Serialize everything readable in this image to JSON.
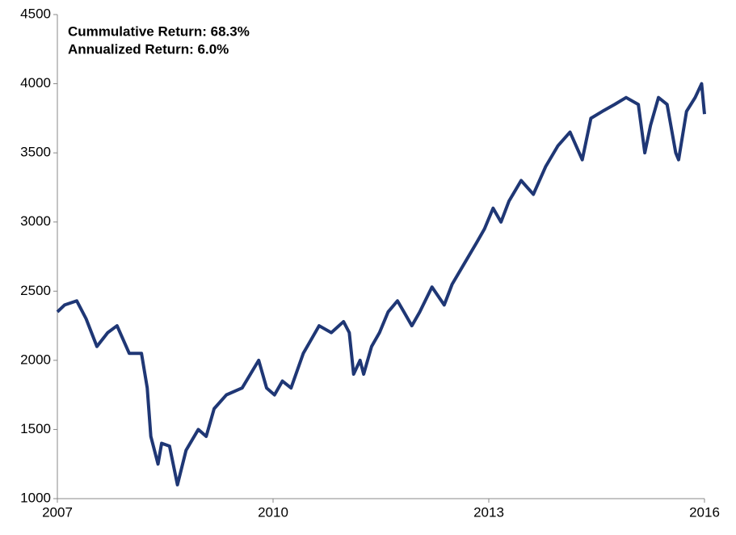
{
  "chart_data": {
    "type": "line",
    "annotations": [
      "Cummulative Return: 68.3%",
      "Annualized Return: 6.0%"
    ],
    "x": [
      2007.0,
      2007.1,
      2007.27,
      2007.4,
      2007.55,
      2007.7,
      2007.83,
      2008.0,
      2008.17,
      2008.25,
      2008.3,
      2008.4,
      2008.45,
      2008.56,
      2008.67,
      2008.79,
      2008.96,
      2009.07,
      2009.18,
      2009.35,
      2009.57,
      2009.8,
      2009.91,
      2010.02,
      2010.13,
      2010.25,
      2010.42,
      2010.64,
      2010.81,
      2010.98,
      2011.06,
      2011.12,
      2011.21,
      2011.26,
      2011.37,
      2011.48,
      2011.6,
      2011.73,
      2011.82,
      2011.93,
      2012.04,
      2012.21,
      2012.38,
      2012.49,
      2012.66,
      2012.83,
      2012.94,
      2013.06,
      2013.17,
      2013.28,
      2013.45,
      2013.62,
      2013.79,
      2013.96,
      2014.13,
      2014.3,
      2014.42,
      2014.58,
      2014.75,
      2014.91,
      2015.08,
      2015.17,
      2015.25,
      2015.36,
      2015.48,
      2015.6,
      2015.64,
      2015.75,
      2015.87,
      2015.96,
      2016.0
    ],
    "series": [
      {
        "color": "#1f3775",
        "values": [
          2350,
          2400,
          2430,
          2300,
          2100,
          2200,
          2250,
          2050,
          2050,
          1800,
          1450,
          1250,
          1400,
          1380,
          1100,
          1350,
          1500,
          1450,
          1650,
          1750,
          1800,
          2000,
          1800,
          1750,
          1850,
          1800,
          2050,
          2250,
          2200,
          2280,
          2200,
          1900,
          2000,
          1900,
          2100,
          2200,
          2350,
          2430,
          2350,
          2250,
          2350,
          2530,
          2400,
          2550,
          2700,
          2850,
          2950,
          3100,
          3000,
          3150,
          3300,
          3200,
          3400,
          3550,
          3650,
          3450,
          3750,
          3800,
          3850,
          3900,
          3850,
          3500,
          3700,
          3900,
          3850,
          3500,
          3450,
          3800,
          3900,
          4000,
          3780
        ]
      }
    ],
    "xlim": [
      2007,
      2016
    ],
    "xticks": [
      2007,
      2010,
      2013,
      2016
    ],
    "ylim": [
      1000,
      4500
    ],
    "yticks": [
      1000,
      1500,
      2000,
      2500,
      3000,
      3500,
      4000,
      4500
    ],
    "grid": false
  }
}
